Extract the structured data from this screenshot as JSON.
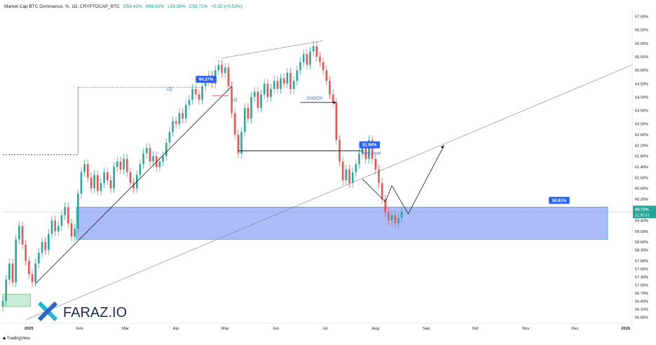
{
  "header": {
    "title": "Market Cap BTC Dominance, %, 1D, CRYPTOCAP_BTC",
    "open": "O59.41%",
    "high": "H59.92%",
    "low": "L59.39%",
    "close": "C59.72%",
    "change": "+0.32 (+0.53%)"
  },
  "footer": {
    "brand": "TradingView"
  },
  "logo": {
    "text": "FARAZ.IO"
  },
  "colors": {
    "up": "#26a69a",
    "down": "#ef5350",
    "zone_fill": "#8fa5f5",
    "zone_border": "#22b7d0",
    "label_blue": "#2962ff",
    "price_tag": "#26a69a",
    "support_zone": "#c8ecd4"
  },
  "chart_data": {
    "type": "candlestick",
    "title": "Market Cap BTC Dominance, %, 1D, CRYPTOCAP_BTC",
    "ylabel": "%",
    "ylim": [
      55.6,
      67.25
    ],
    "y_ticks": [
      "67.00%",
      "66.50%",
      "66.00%",
      "65.50%",
      "65.00%",
      "64.50%",
      "64.00%",
      "63.50%",
      "63.00%",
      "62.60%",
      "62.20%",
      "61.80%",
      "61.40%",
      "61.00%",
      "60.60%",
      "60.20%",
      "59.80%",
      "59.40%",
      "59.00%",
      "58.60%",
      "58.30%",
      "57.90%",
      "57.60%",
      "57.30%",
      "57.00%",
      "56.70%",
      "56.40%",
      "56.10%",
      "55.80%"
    ],
    "x_ticks": [
      {
        "label": "2025",
        "t": 0
      },
      {
        "label": "Feb",
        "t": 31
      },
      {
        "label": "Mar",
        "t": 59
      },
      {
        "label": "Apr",
        "t": 90
      },
      {
        "label": "May",
        "t": 120
      },
      {
        "label": "Jun",
        "t": 151
      },
      {
        "label": "Jul",
        "t": 181
      },
      {
        "label": "Aug",
        "t": 212
      },
      {
        "label": "Sep",
        "t": 243
      },
      {
        "label": "Oct",
        "t": 273
      },
      {
        "label": "Nov",
        "t": 304
      },
      {
        "label": "Dec",
        "t": 334
      },
      {
        "label": "2026",
        "t": 365
      }
    ],
    "x_range_days": [
      -16,
      369
    ],
    "closes": [
      [
        -16,
        56.4
      ],
      [
        -14,
        57.2
      ],
      [
        -12,
        57.8
      ],
      [
        -10,
        57.1
      ],
      [
        -8,
        58.7
      ],
      [
        -6,
        59.2
      ],
      [
        -4,
        58.5
      ],
      [
        -2,
        57.9
      ],
      [
        0,
        57.4
      ],
      [
        2,
        57.1
      ],
      [
        4,
        57.8
      ],
      [
        6,
        58.2
      ],
      [
        8,
        58.6
      ],
      [
        10,
        58.3
      ],
      [
        12,
        58.9
      ],
      [
        14,
        59.4
      ],
      [
        16,
        59.0
      ],
      [
        18,
        59.2
      ],
      [
        20,
        59.6
      ],
      [
        22,
        59.9
      ],
      [
        24,
        59.3
      ],
      [
        26,
        58.8
      ],
      [
        28,
        59.1
      ],
      [
        30,
        60.4
      ],
      [
        32,
        61.2
      ],
      [
        34,
        61.5
      ],
      [
        36,
        61.0
      ],
      [
        38,
        60.6
      ],
      [
        40,
        61.1
      ],
      [
        42,
        60.5
      ],
      [
        44,
        60.8
      ],
      [
        46,
        61.2
      ],
      [
        48,
        60.9
      ],
      [
        50,
        60.6
      ],
      [
        52,
        61.4
      ],
      [
        54,
        61.6
      ],
      [
        56,
        61.3
      ],
      [
        58,
        61.7
      ],
      [
        60,
        61.2
      ],
      [
        62,
        60.8
      ],
      [
        64,
        60.6
      ],
      [
        66,
        61.1
      ],
      [
        68,
        61.5
      ],
      [
        70,
        61.9
      ],
      [
        72,
        62.1
      ],
      [
        74,
        61.6
      ],
      [
        76,
        61.8
      ],
      [
        78,
        61.4
      ],
      [
        80,
        61.6
      ],
      [
        82,
        61.8
      ],
      [
        84,
        62.3
      ],
      [
        86,
        62.7
      ],
      [
        88,
        63.1
      ],
      [
        90,
        63.0
      ],
      [
        92,
        63.4
      ],
      [
        94,
        63.2
      ],
      [
        96,
        63.7
      ],
      [
        98,
        63.9
      ],
      [
        100,
        64.3
      ],
      [
        102,
        64.1
      ],
      [
        104,
        63.9
      ],
      [
        106,
        64.4
      ],
      [
        108,
        64.6
      ],
      [
        110,
        64.8
      ],
      [
        112,
        64.5
      ],
      [
        114,
        65.0
      ],
      [
        116,
        65.2
      ],
      [
        118,
        64.9
      ],
      [
        120,
        65.1
      ],
      [
        122,
        64.4
      ],
      [
        124,
        63.4
      ],
      [
        126,
        62.6
      ],
      [
        128,
        61.9
      ],
      [
        130,
        62.7
      ],
      [
        132,
        63.6
      ],
      [
        134,
        63.2
      ],
      [
        136,
        64.0
      ],
      [
        138,
        64.2
      ],
      [
        140,
        63.6
      ],
      [
        142,
        64.1
      ],
      [
        144,
        64.5
      ],
      [
        146,
        64.0
      ],
      [
        148,
        64.3
      ],
      [
        150,
        64.6
      ],
      [
        152,
        64.3
      ],
      [
        154,
        64.7
      ],
      [
        156,
        64.5
      ],
      [
        158,
        64.9
      ],
      [
        160,
        64.3
      ],
      [
        162,
        64.6
      ],
      [
        164,
        65.0
      ],
      [
        166,
        65.3
      ],
      [
        168,
        65.6
      ],
      [
        170,
        65.2
      ],
      [
        172,
        65.7
      ],
      [
        174,
        65.9
      ],
      [
        176,
        65.5
      ],
      [
        178,
        65.3
      ],
      [
        180,
        65.0
      ],
      [
        182,
        64.6
      ],
      [
        184,
        64.1
      ],
      [
        186,
        63.8
      ],
      [
        188,
        62.4
      ],
      [
        190,
        61.6
      ],
      [
        192,
        60.9
      ],
      [
        194,
        61.3
      ],
      [
        196,
        60.8
      ],
      [
        198,
        61.2
      ],
      [
        200,
        61.5
      ],
      [
        202,
        61.9
      ],
      [
        204,
        62.1
      ],
      [
        206,
        61.7
      ],
      [
        208,
        62.4
      ],
      [
        210,
        61.7
      ],
      [
        212,
        61.3
      ],
      [
        214,
        60.8
      ],
      [
        216,
        60.2
      ],
      [
        218,
        59.7
      ],
      [
        220,
        59.4
      ],
      [
        222,
        59.6
      ],
      [
        224,
        59.3
      ],
      [
        226,
        59.5
      ],
      [
        228,
        59.72
      ]
    ]
  },
  "annotations": {
    "label_1": "64.37%",
    "label_2": "61.94%",
    "label_3": "59.81%",
    "lq_1": "LQ",
    "lq_2": "LQ",
    "choch": "CHOCH",
    "key_level": "Key Level",
    "price_tag": "59.72%",
    "countdown": "11:30:51"
  }
}
